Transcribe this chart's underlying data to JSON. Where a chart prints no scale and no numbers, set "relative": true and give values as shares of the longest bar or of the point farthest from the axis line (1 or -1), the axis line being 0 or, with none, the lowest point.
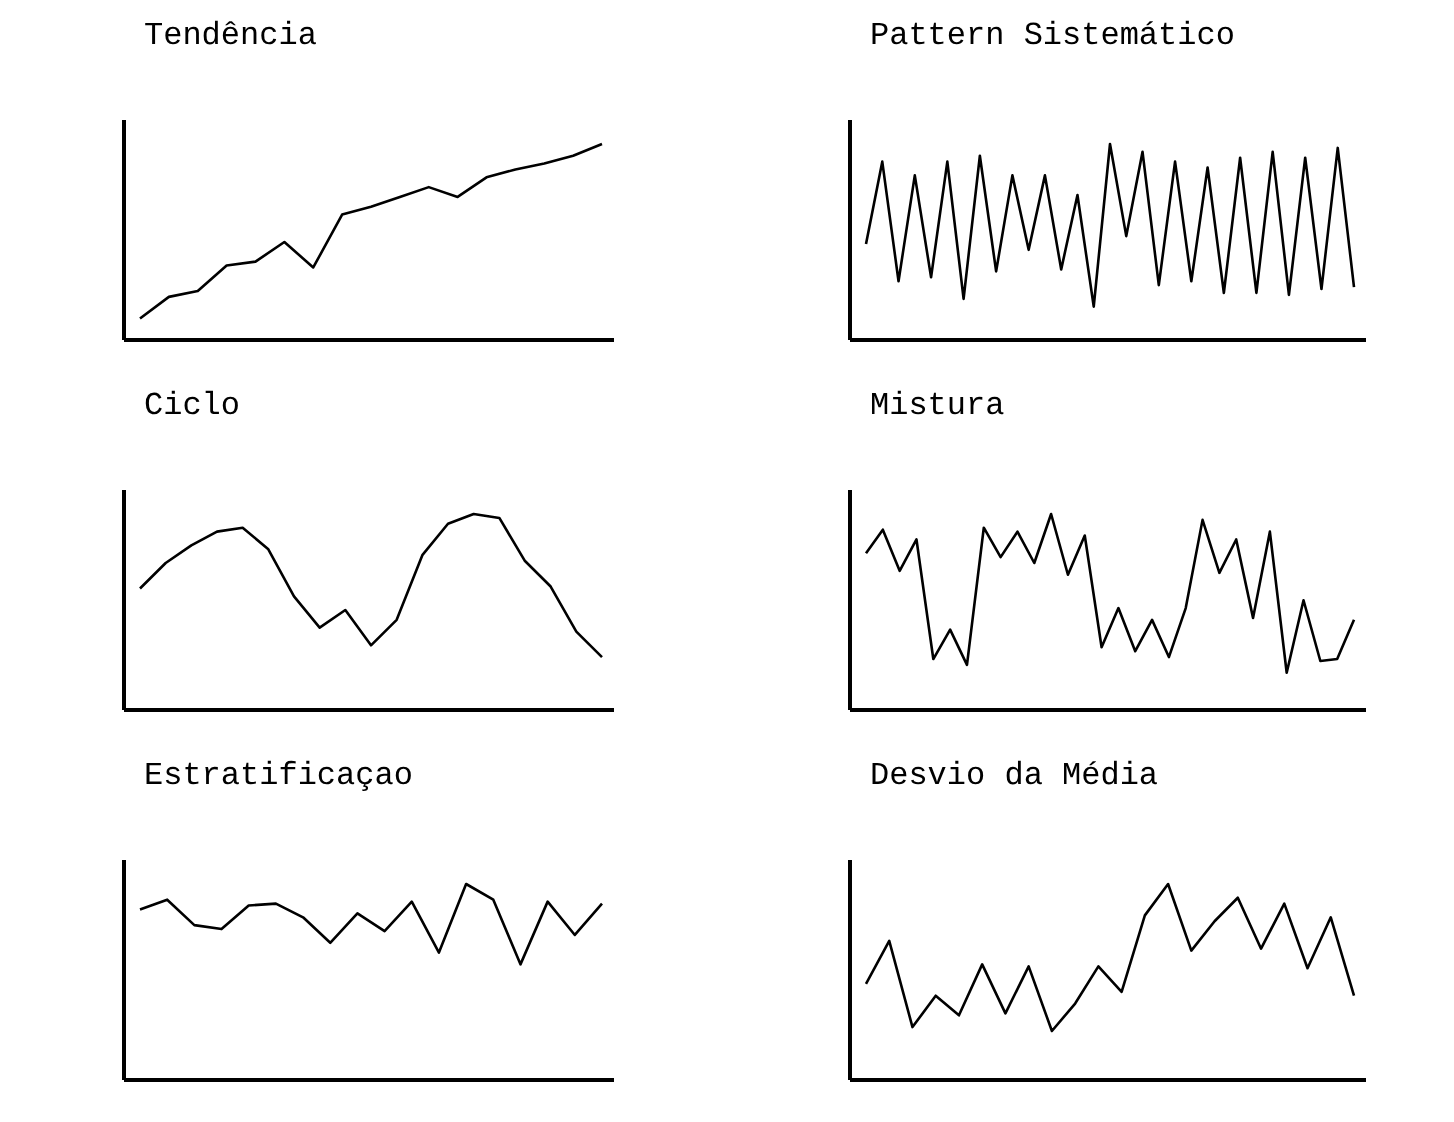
{
  "chart_data": [
    {
      "type": "line",
      "title": "Tendência",
      "relative": true,
      "color": "#000000",
      "categories": [
        null,
        null,
        null,
        null,
        null,
        null,
        null,
        null,
        null,
        null,
        null,
        null,
        null,
        null,
        null,
        null,
        null
      ],
      "values": [
        0.11,
        0.22,
        0.25,
        0.38,
        0.4,
        0.5,
        0.37,
        0.64,
        0.68,
        0.73,
        0.78,
        0.73,
        0.83,
        0.87,
        0.9,
        0.94,
        1
      ]
    },
    {
      "type": "line",
      "title": "Pattern Sistemático",
      "relative": true,
      "color": "#000000",
      "categories": [
        null,
        null,
        null,
        null,
        null,
        null,
        null,
        null,
        null,
        null,
        null,
        null,
        null,
        null,
        null,
        null,
        null,
        null,
        null,
        null,
        null,
        null,
        null,
        null,
        null,
        null,
        null,
        null,
        null,
        null,
        null
      ],
      "values": [
        0.49,
        0.91,
        0.3,
        0.84,
        0.32,
        0.91,
        0.21,
        0.94,
        0.35,
        0.84,
        0.46,
        0.84,
        0.36,
        0.74,
        0.17,
        1,
        0.53,
        0.96,
        0.28,
        0.91,
        0.3,
        0.88,
        0.24,
        0.93,
        0.24,
        0.96,
        0.23,
        0.93,
        0.26,
        0.98,
        0.27
      ]
    },
    {
      "type": "line",
      "title": "Ciclo",
      "relative": true,
      "color": "#000000",
      "categories": [
        null,
        null,
        null,
        null,
        null,
        null,
        null,
        null,
        null,
        null,
        null,
        null,
        null,
        null,
        null,
        null,
        null,
        null,
        null
      ],
      "values": [
        0.62,
        0.75,
        0.84,
        0.91,
        0.93,
        0.82,
        0.58,
        0.42,
        0.51,
        0.33,
        0.46,
        0.79,
        0.95,
        1,
        0.98,
        0.76,
        0.63,
        0.4,
        0.27
      ]
    },
    {
      "type": "line",
      "title": "Mistura",
      "relative": true,
      "color": "#000000",
      "categories": [
        null,
        null,
        null,
        null,
        null,
        null,
        null,
        null,
        null,
        null,
        null,
        null,
        null,
        null,
        null,
        null,
        null,
        null,
        null,
        null,
        null,
        null,
        null,
        null,
        null,
        null,
        null,
        null,
        null,
        null
      ],
      "values": [
        0.8,
        0.92,
        0.71,
        0.87,
        0.26,
        0.41,
        0.23,
        0.93,
        0.78,
        0.91,
        0.75,
        1,
        0.69,
        0.89,
        0.32,
        0.52,
        0.3,
        0.46,
        0.27,
        0.52,
        0.97,
        0.7,
        0.87,
        0.47,
        0.91,
        0.19,
        0.56,
        0.25,
        0.26,
        0.46
      ]
    },
    {
      "type": "line",
      "title": "Estratificaçao",
      "relative": true,
      "color": "#000000",
      "categories": [
        null,
        null,
        null,
        null,
        null,
        null,
        null,
        null,
        null,
        null,
        null,
        null,
        null,
        null,
        null,
        null,
        null,
        null
      ],
      "values": [
        0.87,
        0.92,
        0.79,
        0.77,
        0.89,
        0.9,
        0.83,
        0.7,
        0.85,
        0.76,
        0.91,
        0.65,
        1,
        0.92,
        0.59,
        0.91,
        0.74,
        0.9
      ]
    },
    {
      "type": "line",
      "title": "Desvio da Média",
      "relative": true,
      "color": "#000000",
      "categories": [
        null,
        null,
        null,
        null,
        null,
        null,
        null,
        null,
        null,
        null,
        null,
        null,
        null,
        null,
        null,
        null,
        null,
        null,
        null,
        null,
        null,
        null
      ],
      "values": [
        0.49,
        0.71,
        0.27,
        0.43,
        0.33,
        0.59,
        0.34,
        0.58,
        0.25,
        0.39,
        0.58,
        0.45,
        0.84,
        1,
        0.66,
        0.81,
        0.93,
        0.67,
        0.9,
        0.57,
        0.83,
        0.43
      ]
    }
  ]
}
